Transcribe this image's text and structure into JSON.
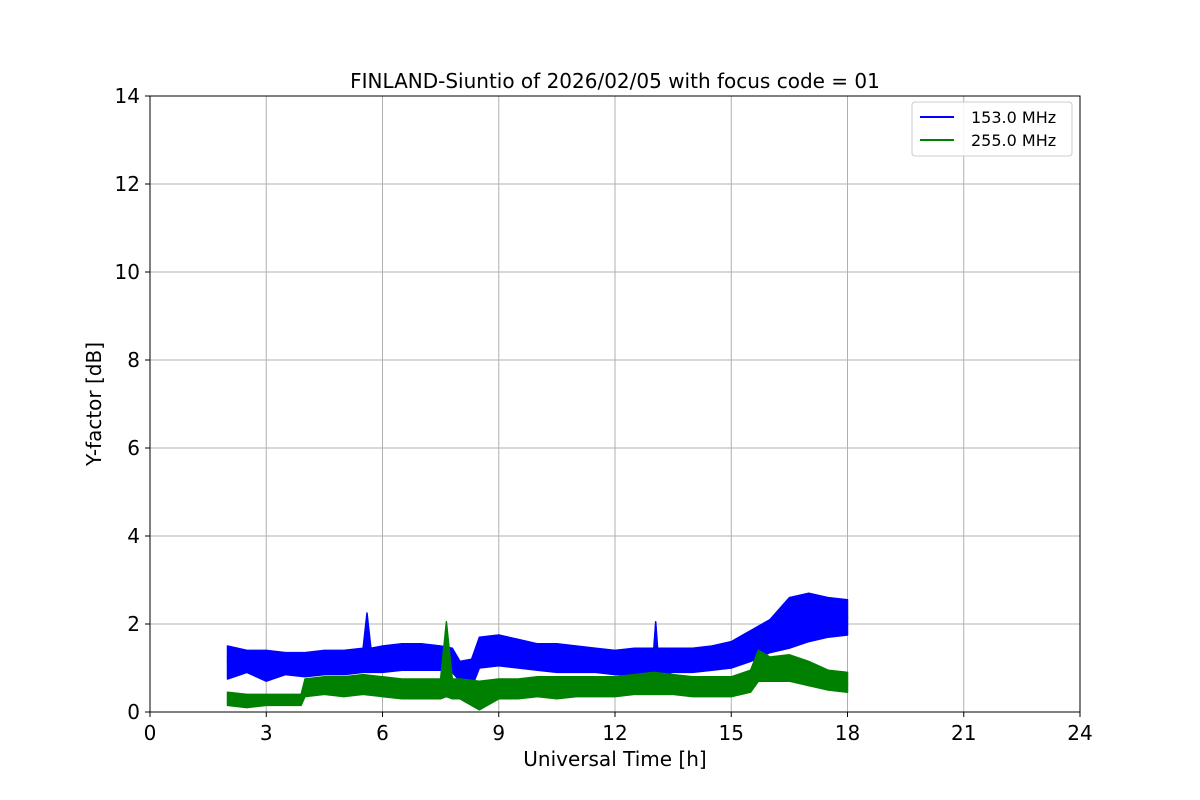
{
  "chart_data": {
    "type": "line",
    "title": "FINLAND-Siuntio of 2026/02/05 with focus code = 01",
    "xlabel": "Universal Time [h]",
    "ylabel": "Y-factor [dB]",
    "xlim": [
      0,
      24
    ],
    "ylim": [
      0,
      14
    ],
    "xticks": [
      0,
      3,
      6,
      9,
      12,
      15,
      18,
      21,
      24
    ],
    "xtick_labels": [
      "0",
      "3",
      "6",
      "9",
      "12",
      "15",
      "18",
      "21",
      "24"
    ],
    "yticks": [
      0,
      2,
      4,
      6,
      8,
      10,
      12,
      14
    ],
    "ytick_labels": [
      "0",
      "2",
      "4",
      "6",
      "8",
      "10",
      "12",
      "14"
    ],
    "grid": true,
    "legend_position": "top-right",
    "series": [
      {
        "name": "153.0 MHz",
        "color": "#0000ff",
        "x": [
          2.0,
          2.5,
          3.0,
          3.5,
          4.0,
          4.5,
          5.0,
          5.5,
          5.6,
          5.7,
          6.0,
          6.5,
          7.0,
          7.5,
          7.8,
          8.0,
          8.3,
          8.5,
          9.0,
          9.5,
          10.0,
          10.5,
          11.0,
          11.5,
          12.0,
          12.5,
          13.0,
          13.05,
          13.1,
          13.5,
          14.0,
          14.5,
          15.0,
          15.5,
          16.0,
          16.5,
          17.0,
          17.5,
          18.0
        ],
        "y": [
          1.15,
          1.1,
          1.05,
          1.05,
          1.0,
          1.05,
          1.05,
          1.1,
          2.2,
          1.1,
          1.1,
          1.15,
          1.2,
          1.2,
          1.15,
          0.9,
          0.85,
          1.3,
          1.35,
          1.3,
          1.2,
          1.15,
          1.15,
          1.1,
          1.05,
          1.1,
          1.1,
          2.0,
          1.1,
          1.15,
          1.15,
          1.15,
          1.25,
          1.45,
          1.7,
          1.85,
          2.05,
          2.1,
          2.15
        ],
        "y_low": [
          0.75,
          0.9,
          0.7,
          0.85,
          0.8,
          0.85,
          0.85,
          0.9,
          0.9,
          0.9,
          0.9,
          0.95,
          0.95,
          0.95,
          0.9,
          0.7,
          0.55,
          1.0,
          1.05,
          1.0,
          0.95,
          0.9,
          0.9,
          0.9,
          0.85,
          0.85,
          0.85,
          0.85,
          0.85,
          0.9,
          0.9,
          0.95,
          1.0,
          1.15,
          1.35,
          1.45,
          1.6,
          1.7,
          1.75
        ],
        "y_high": [
          1.5,
          1.4,
          1.4,
          1.35,
          1.35,
          1.4,
          1.4,
          1.45,
          2.25,
          1.45,
          1.5,
          1.55,
          1.55,
          1.5,
          1.45,
          1.15,
          1.2,
          1.7,
          1.75,
          1.65,
          1.55,
          1.55,
          1.5,
          1.45,
          1.4,
          1.45,
          1.45,
          2.05,
          1.45,
          1.45,
          1.45,
          1.5,
          1.6,
          1.85,
          2.1,
          2.6,
          2.7,
          2.6,
          2.55
        ]
      },
      {
        "name": "255.0 MHz",
        "color": "#008000",
        "x": [
          2.0,
          2.5,
          3.0,
          3.5,
          3.9,
          4.0,
          4.5,
          5.0,
          5.5,
          6.0,
          6.5,
          7.0,
          7.5,
          7.65,
          7.8,
          8.0,
          8.5,
          9.0,
          9.5,
          10.0,
          10.5,
          11.0,
          11.5,
          12.0,
          12.5,
          13.0,
          13.5,
          14.0,
          14.5,
          15.0,
          15.5,
          15.7,
          16.0,
          16.5,
          17.0,
          17.5,
          18.0
        ],
        "y": [
          0.25,
          0.25,
          0.25,
          0.25,
          0.25,
          0.5,
          0.55,
          0.55,
          0.6,
          0.55,
          0.5,
          0.5,
          0.5,
          2.0,
          0.5,
          0.5,
          0.45,
          0.5,
          0.5,
          0.55,
          0.5,
          0.55,
          0.55,
          0.55,
          0.6,
          0.6,
          0.6,
          0.55,
          0.55,
          0.55,
          0.65,
          1.35,
          0.95,
          0.95,
          0.85,
          0.7,
          0.65
        ],
        "y_low": [
          0.15,
          0.1,
          0.15,
          0.15,
          0.15,
          0.35,
          0.4,
          0.35,
          0.4,
          0.35,
          0.3,
          0.3,
          0.3,
          0.35,
          0.3,
          0.3,
          0.05,
          0.3,
          0.3,
          0.35,
          0.3,
          0.35,
          0.35,
          0.35,
          0.4,
          0.4,
          0.4,
          0.35,
          0.35,
          0.35,
          0.45,
          0.7,
          0.7,
          0.7,
          0.6,
          0.5,
          0.45
        ],
        "y_high": [
          0.45,
          0.4,
          0.4,
          0.4,
          0.4,
          0.75,
          0.8,
          0.8,
          0.85,
          0.8,
          0.75,
          0.75,
          0.75,
          2.05,
          0.75,
          0.75,
          0.7,
          0.75,
          0.75,
          0.8,
          0.8,
          0.8,
          0.8,
          0.8,
          0.85,
          0.9,
          0.85,
          0.8,
          0.8,
          0.8,
          0.95,
          1.4,
          1.25,
          1.3,
          1.15,
          0.95,
          0.9
        ]
      }
    ]
  }
}
